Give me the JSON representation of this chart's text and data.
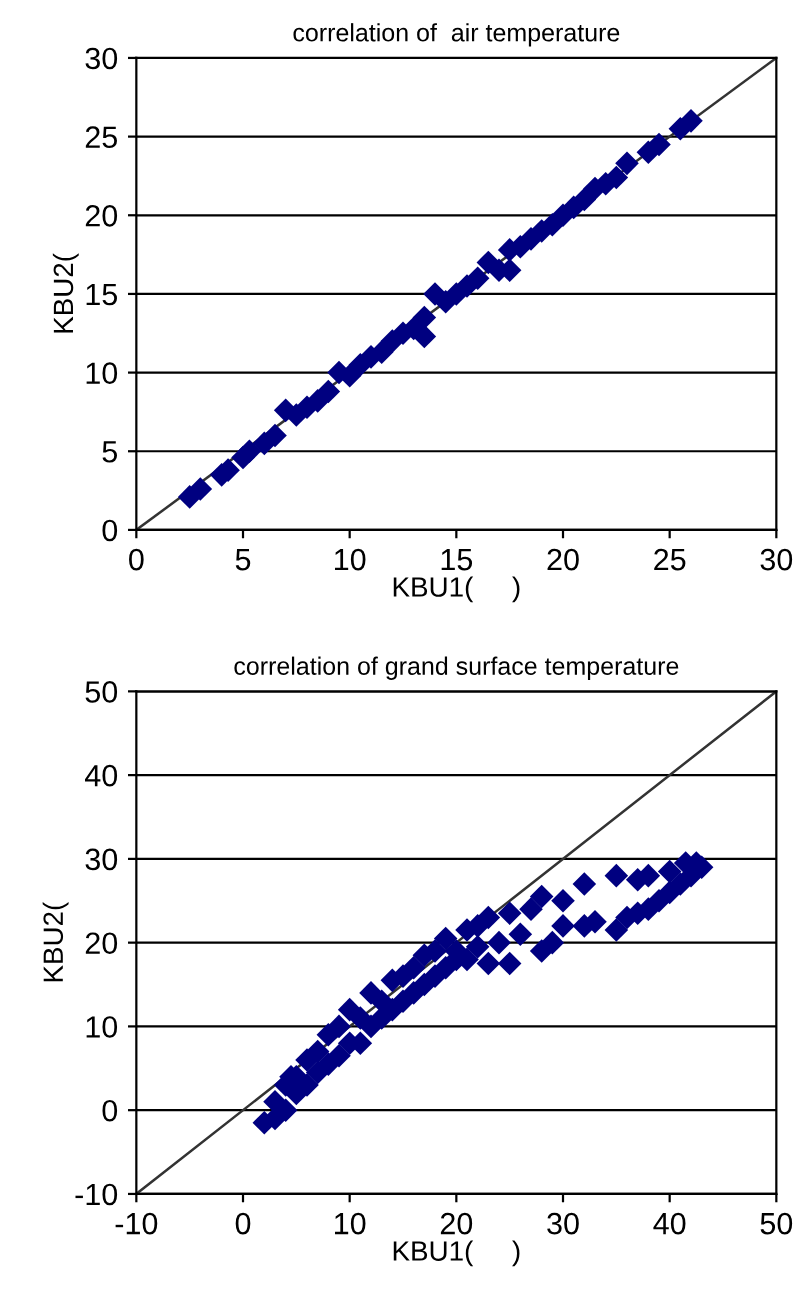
{
  "chart_data": [
    {
      "type": "scatter",
      "title": "correlation of  air temperature",
      "xlabel": "KBU1(     )",
      "ylabel": "KBU2(",
      "xlim": [
        0,
        30
      ],
      "ylim": [
        0,
        30
      ],
      "xticks": [
        0,
        5,
        10,
        15,
        20,
        25,
        30
      ],
      "yticks": [
        0,
        5,
        10,
        15,
        20,
        25,
        30
      ],
      "grid": "y",
      "legend": false,
      "marker": "diamond",
      "series": [
        {
          "color": "#000080",
          "x": [
            2.5,
            3,
            4,
            4.3,
            5,
            5.3,
            6,
            6.5,
            7,
            7.5,
            8,
            8.5,
            9,
            9.5,
            10,
            10.5,
            11,
            11.5,
            12,
            12.5,
            13,
            13.5,
            13.5,
            14,
            14.5,
            15,
            15.5,
            16,
            16.5,
            17,
            17.5,
            17.5,
            18,
            18.5,
            19,
            19.5,
            20,
            20.5,
            21,
            21.5,
            22,
            22.5,
            23,
            24,
            24.5,
            25.5,
            26
          ],
          "values": [
            2.1,
            2.6,
            3.5,
            3.8,
            4.6,
            5,
            5.5,
            6,
            7.6,
            7.3,
            7.8,
            8.2,
            8.8,
            10,
            9.8,
            10.5,
            11,
            11.3,
            12,
            12.5,
            12.8,
            12.3,
            13.5,
            15,
            14.5,
            15,
            15.5,
            16,
            17,
            16.5,
            16.5,
            17.8,
            18,
            18.5,
            19,
            19.4,
            20,
            20.5,
            21,
            21.7,
            22,
            22.4,
            23.3,
            24,
            24.5,
            25.5,
            26
          ]
        },
        {
          "type": "line",
          "color": "#333333",
          "marker": "none",
          "x": [
            0,
            30
          ],
          "values": [
            0,
            30
          ]
        }
      ]
    },
    {
      "type": "scatter",
      "title": "correlation of grand surface temperature",
      "xlabel": "KBU1(     )",
      "ylabel": "KBU2(",
      "xlim": [
        -10,
        50
      ],
      "ylim": [
        -10,
        50
      ],
      "xticks": [
        -10,
        0,
        10,
        20,
        30,
        40,
        50
      ],
      "yticks": [
        -10,
        0,
        10,
        20,
        30,
        40,
        50
      ],
      "grid": "y",
      "legend": false,
      "marker": "diamond",
      "series": [
        {
          "color": "#000080",
          "x": [
            2,
            3,
            3,
            4,
            4,
            4.5,
            5,
            5,
            6,
            6,
            7,
            7,
            8,
            8,
            9,
            9,
            10,
            10,
            11,
            11,
            12,
            12,
            13,
            13,
            14,
            14,
            15,
            15,
            16,
            16,
            17,
            17,
            18,
            18,
            19,
            19,
            20,
            20,
            21,
            21,
            22,
            22,
            23,
            23,
            24,
            25,
            25,
            26,
            27,
            28,
            28,
            29,
            30,
            30,
            32,
            32,
            33,
            35,
            35,
            36,
            37,
            37,
            38,
            38,
            39,
            40,
            40,
            41,
            41.5,
            42,
            42.5,
            43
          ],
          "values": [
            -1.5,
            -1,
            1,
            0,
            3,
            4,
            2,
            4,
            3,
            6,
            4.5,
            7,
            5.5,
            9,
            6.5,
            10,
            8,
            12,
            8,
            11,
            10,
            14,
            11,
            13,
            12,
            15.5,
            13,
            16,
            14,
            17,
            15,
            18.5,
            16,
            19,
            17,
            20.5,
            18,
            19,
            18,
            21.5,
            19.5,
            22,
            17.5,
            23,
            20,
            23.5,
            17.5,
            21,
            24,
            25.5,
            19,
            20,
            25,
            22,
            27,
            22,
            22.5,
            28,
            21.5,
            23,
            27.5,
            23.5,
            24,
            28,
            25,
            28.5,
            26,
            27,
            29.5,
            28,
            29.5,
            29
          ]
        },
        {
          "type": "line",
          "color": "#333333",
          "marker": "none",
          "x": [
            -10,
            50
          ],
          "values": [
            -10,
            50
          ]
        }
      ]
    }
  ]
}
